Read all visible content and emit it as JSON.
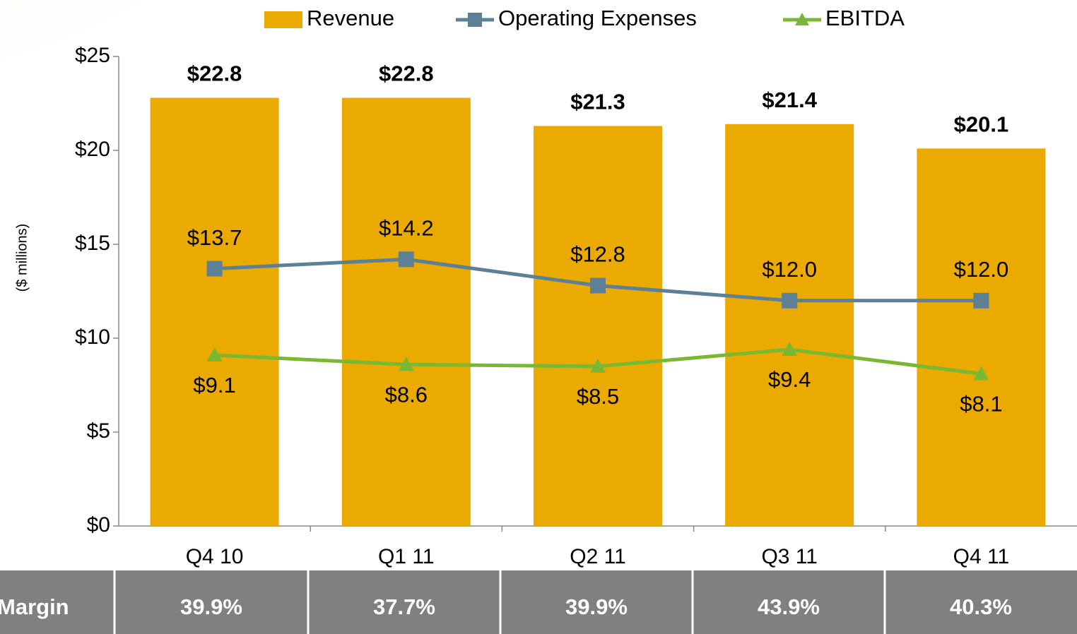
{
  "chart_data": {
    "type": "bar-line",
    "y_label": "($ millions)",
    "categories": [
      "Q4 10",
      "Q1 11",
      "Q2 11",
      "Q3 11",
      "Q4 11"
    ],
    "series": [
      {
        "name": "Revenue",
        "type": "bar",
        "color": "#EAAA00",
        "values": [
          22.8,
          22.8,
          21.3,
          21.4,
          20.1
        ],
        "value_labels": [
          "$22.8",
          "$22.8",
          "$21.3",
          "$21.4",
          "$20.1"
        ]
      },
      {
        "name": "Operating Expenses",
        "type": "line",
        "marker": "square",
        "color": "#5E8096",
        "values": [
          13.7,
          14.2,
          12.8,
          12.0,
          12.0
        ],
        "value_labels": [
          "$13.7",
          "$14.2",
          "$12.8",
          "$12.0",
          "$12.0"
        ]
      },
      {
        "name": "EBITDA",
        "type": "line",
        "marker": "triangle",
        "color": "#7AB833",
        "values": [
          9.1,
          8.6,
          8.5,
          9.4,
          8.1
        ],
        "value_labels": [
          "$9.1",
          "$8.6",
          "$8.5",
          "$9.4",
          "$8.1"
        ]
      }
    ],
    "ylim": [
      0,
      25
    ],
    "yticks": [
      {
        "value": 0,
        "label": "$0"
      },
      {
        "value": 5,
        "label": "$5"
      },
      {
        "value": 10,
        "label": "$10"
      },
      {
        "value": 15,
        "label": "$15"
      },
      {
        "value": 20,
        "label": "$20"
      },
      {
        "value": 25,
        "label": "$25"
      }
    ],
    "legend": "top"
  },
  "table": {
    "header": "Margin",
    "cells": [
      "39.9%",
      "37.7%",
      "39.9%",
      "43.9%",
      "40.3%"
    ]
  }
}
